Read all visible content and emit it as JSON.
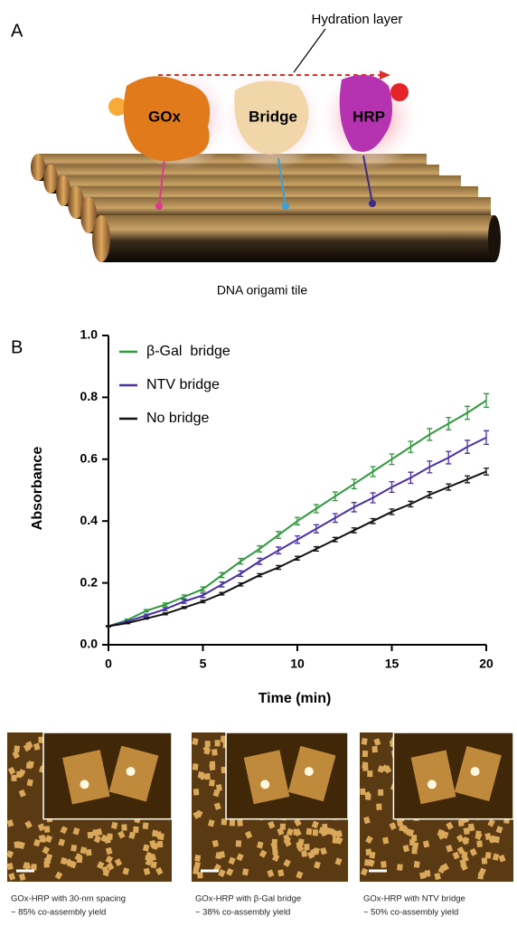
{
  "panel_a": {
    "label": "A",
    "annotation": "Hydration layer",
    "proteins": [
      "GOx",
      "Bridge",
      "HRP"
    ],
    "caption": "DNA origami tile"
  },
  "panel_b": {
    "label": "B"
  },
  "chart_data": {
    "type": "line",
    "x_label": "Time (min)",
    "y_label": "Absorbance",
    "x": [
      0,
      1,
      2,
      3,
      4,
      5,
      6,
      7,
      8,
      9,
      10,
      11,
      12,
      13,
      14,
      15,
      16,
      17,
      18,
      19,
      20
    ],
    "series": [
      {
        "name": "β-Gal  bridge",
        "color": "#2e9a3c",
        "values": [
          0.06,
          0.08,
          0.11,
          0.13,
          0.155,
          0.18,
          0.225,
          0.27,
          0.31,
          0.355,
          0.4,
          0.44,
          0.48,
          0.52,
          0.56,
          0.6,
          0.64,
          0.68,
          0.715,
          0.75,
          0.79
        ],
        "errors": [
          0.002,
          0.003,
          0.004,
          0.005,
          0.006,
          0.007,
          0.008,
          0.009,
          0.01,
          0.011,
          0.012,
          0.013,
          0.014,
          0.015,
          0.016,
          0.017,
          0.018,
          0.019,
          0.02,
          0.021,
          0.022
        ]
      },
      {
        "name": "NTV bridge",
        "color": "#4a2fa8",
        "values": [
          0.06,
          0.075,
          0.095,
          0.115,
          0.14,
          0.16,
          0.195,
          0.23,
          0.27,
          0.305,
          0.34,
          0.375,
          0.41,
          0.445,
          0.475,
          0.51,
          0.54,
          0.575,
          0.605,
          0.64,
          0.67
        ],
        "errors": [
          0.002,
          0.003,
          0.004,
          0.005,
          0.006,
          0.007,
          0.008,
          0.009,
          0.01,
          0.011,
          0.012,
          0.013,
          0.014,
          0.015,
          0.016,
          0.017,
          0.018,
          0.019,
          0.02,
          0.021,
          0.022
        ]
      },
      {
        "name": "No bridge",
        "color": "#111111",
        "values": [
          0.06,
          0.07,
          0.085,
          0.1,
          0.12,
          0.14,
          0.165,
          0.195,
          0.225,
          0.25,
          0.28,
          0.31,
          0.34,
          0.37,
          0.4,
          0.43,
          0.455,
          0.485,
          0.51,
          0.535,
          0.56
        ],
        "errors": [
          0.001,
          0.002,
          0.002,
          0.003,
          0.003,
          0.004,
          0.004,
          0.005,
          0.005,
          0.006,
          0.006,
          0.007,
          0.007,
          0.008,
          0.008,
          0.009,
          0.009,
          0.01,
          0.01,
          0.011,
          0.011
        ]
      }
    ],
    "xlim": [
      0,
      20
    ],
    "xticks": [
      0,
      5,
      10,
      15,
      20
    ],
    "ylim": [
      0,
      1
    ],
    "yticks": [
      {
        "value": 0,
        "label": "0.0"
      },
      0.2,
      0.4,
      0.6,
      0.8,
      {
        "value": 1,
        "label": "1.0"
      }
    ],
    "grid": false,
    "legend": "upper-left"
  },
  "images": [
    {
      "caption": [
        "GOx-HRP with 30-nm spacing",
        "~ 85% co-assembly yield"
      ]
    },
    {
      "caption": [
        "GOx-HRP with β-Gal bridge",
        "~ 38% co-assembly yield"
      ]
    },
    {
      "caption": [
        "GOx-HRP with NTV bridge",
        "~ 50% co-assembly yield"
      ]
    }
  ]
}
